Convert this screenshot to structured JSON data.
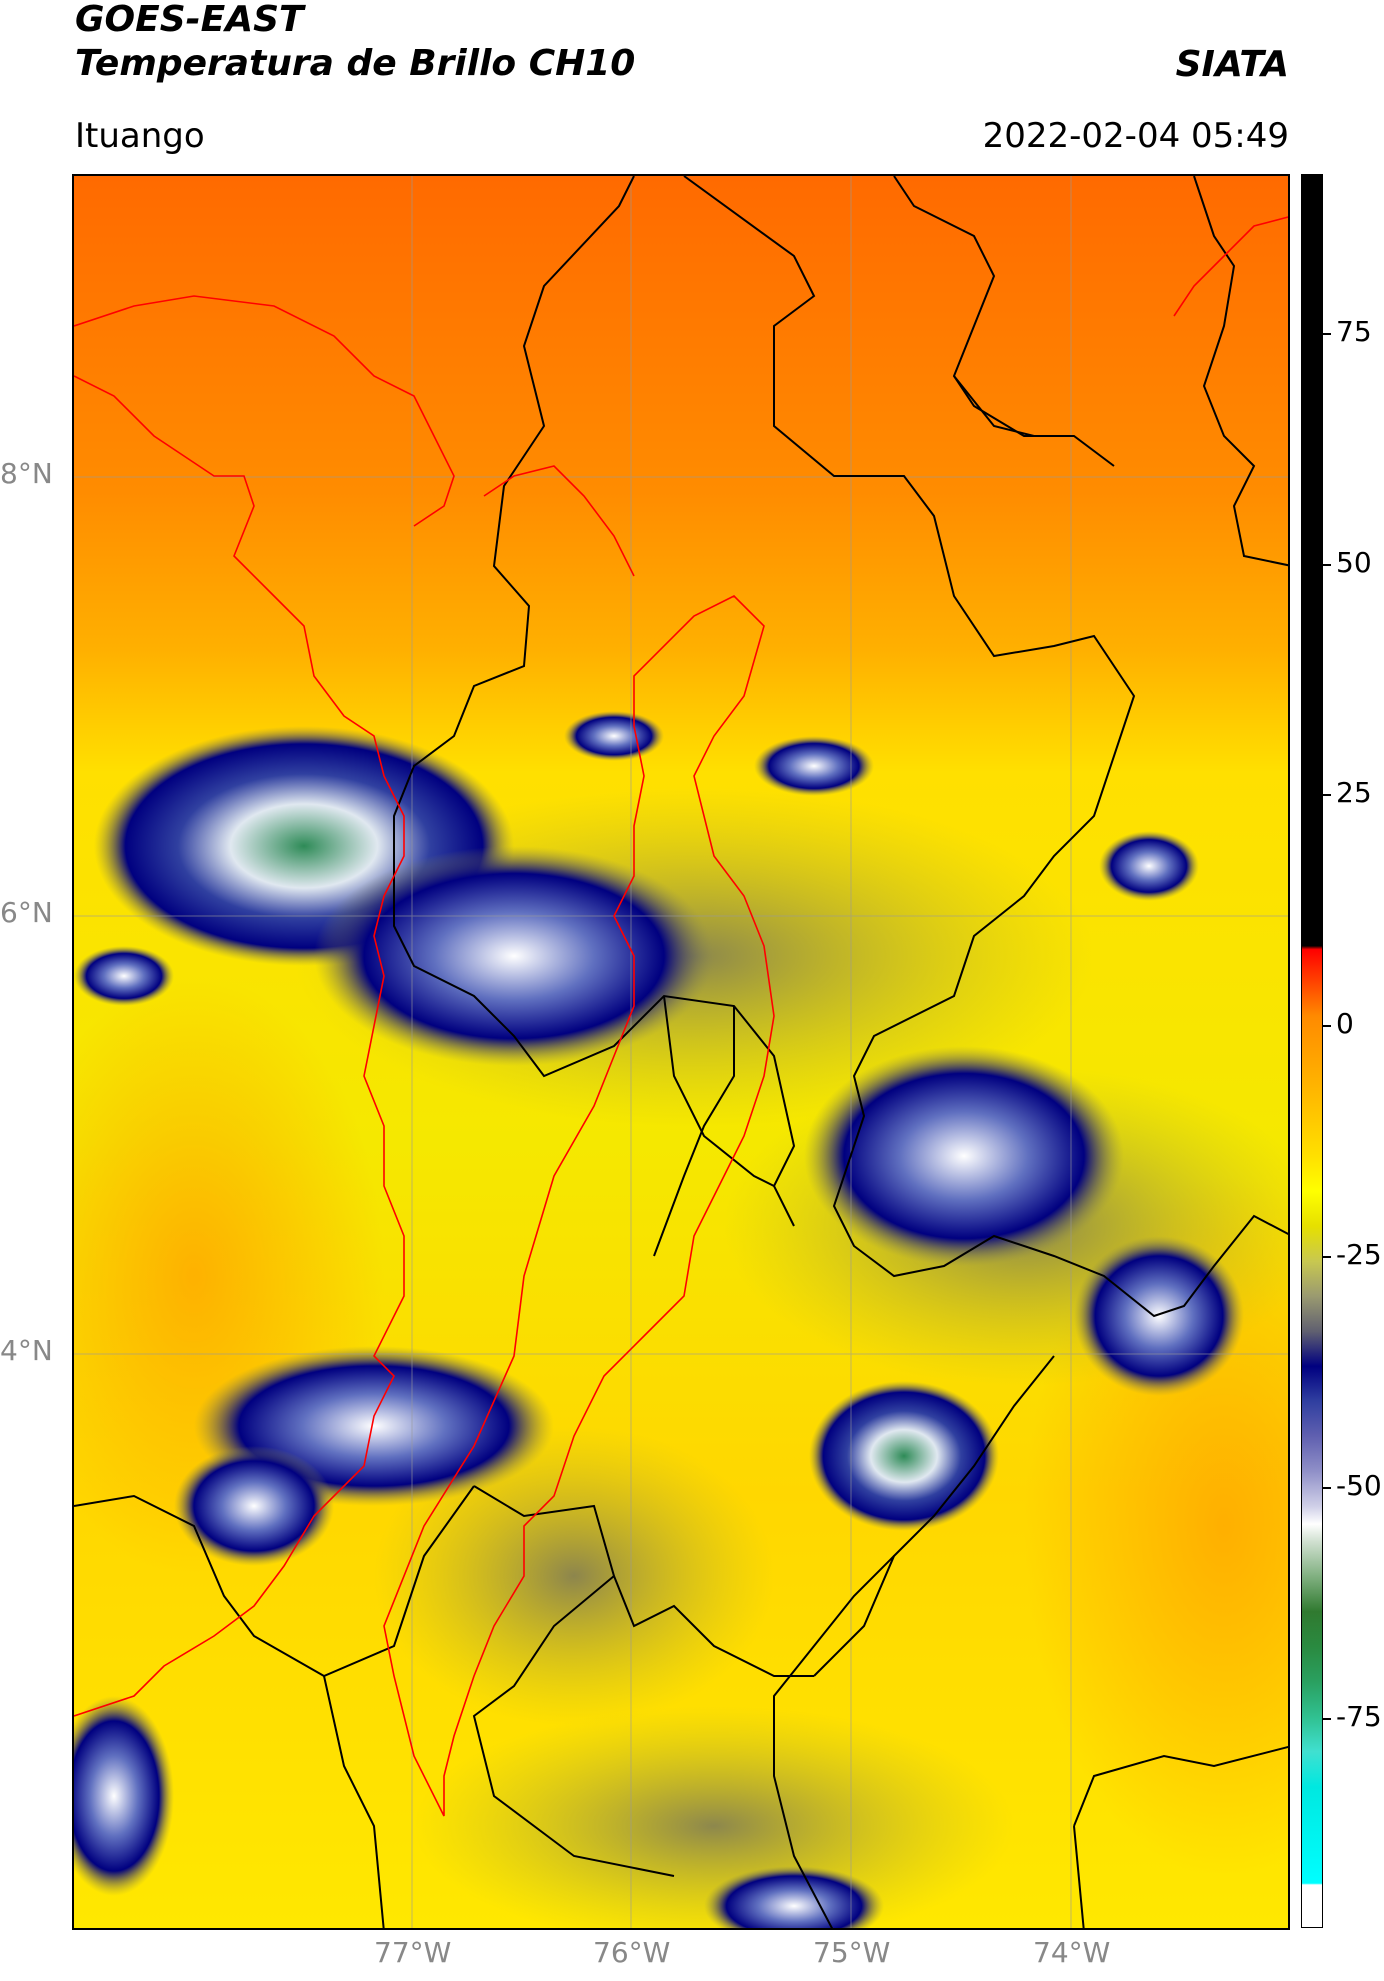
{
  "header": {
    "title_line1": "GOES-EAST",
    "title_line2": "Temperatura de Brillo CH10",
    "organization": "SIATA",
    "location": "Ituango",
    "datetime": "2022-02-04 05:49"
  },
  "map": {
    "lat_labels": [
      "8°N",
      "6°N",
      "4°N"
    ],
    "lon_labels": [
      "77°W",
      "76°W",
      "75°W",
      "74°W"
    ]
  },
  "colorbar": {
    "tick_labels": [
      "75",
      "50",
      "25",
      "0",
      "-25",
      "-50",
      "-75"
    ]
  },
  "colors": {
    "warm": "#ff7a00",
    "mid": "#ffe600",
    "cold_cloud": "#000080",
    "very_cold": "#2e8b57",
    "boundary_black": "#000000",
    "boundary_red": "#ff0000"
  }
}
